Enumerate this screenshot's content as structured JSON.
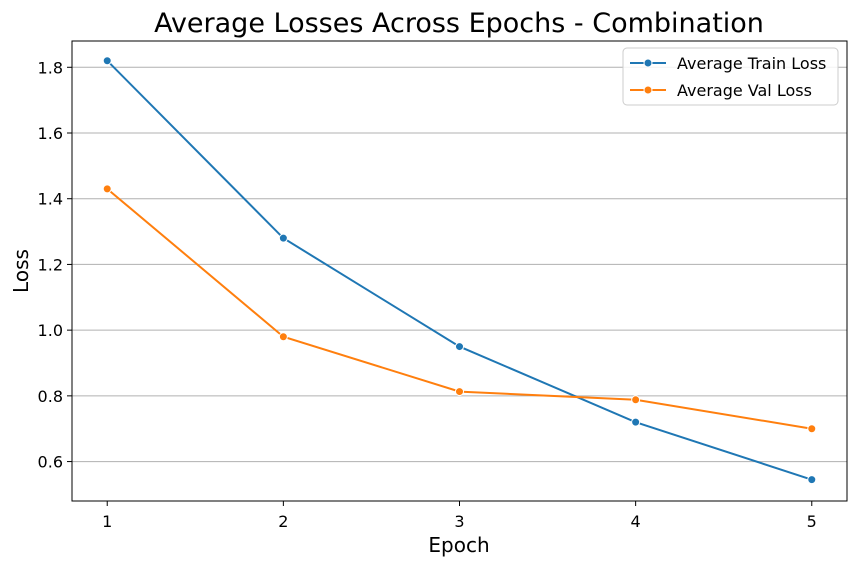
{
  "chart_data": {
    "type": "line",
    "title": "Average Losses Across Epochs - Combination",
    "xlabel": "Epoch",
    "ylabel": "Loss",
    "x": [
      1,
      2,
      3,
      4,
      5
    ],
    "x_tick_labels": [
      "1",
      "2",
      "3",
      "4",
      "5"
    ],
    "y_ticks": [
      0.6,
      0.8,
      1.0,
      1.2,
      1.4,
      1.6,
      1.8
    ],
    "y_tick_labels": [
      "0.6",
      "0.8",
      "1.0",
      "1.2",
      "1.4",
      "1.6",
      "1.8"
    ],
    "xlim": [
      0.8,
      5.2
    ],
    "ylim": [
      0.48,
      1.88
    ],
    "grid": "horizontal",
    "legend_position": "top-right",
    "series": [
      {
        "name": "Average Train Loss",
        "color": "#1f77b4",
        "values": [
          1.82,
          1.28,
          0.95,
          0.72,
          0.545
        ]
      },
      {
        "name": "Average Val Loss",
        "color": "#ff7f0e",
        "values": [
          1.43,
          0.98,
          0.813,
          0.788,
          0.7
        ]
      }
    ]
  }
}
